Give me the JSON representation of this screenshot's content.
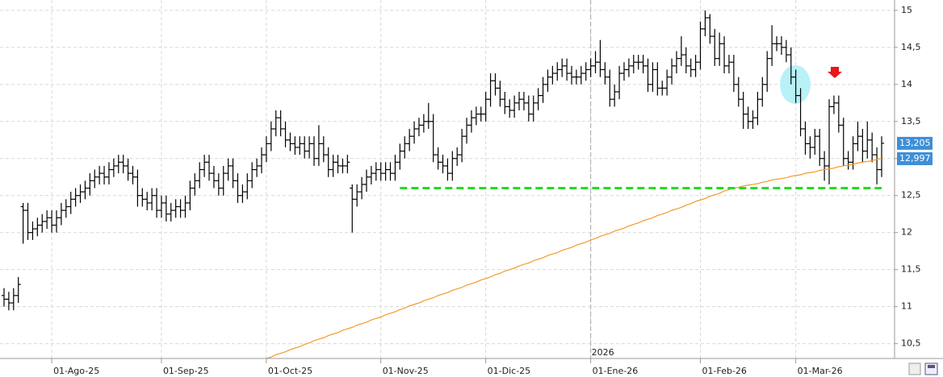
{
  "chart_data": {
    "type": "ohlc",
    "bar_color": "#000000",
    "categories": [
      null,
      null,
      null,
      null,
      null,
      null,
      null,
      null,
      null,
      null,
      "01-Ago-25",
      null,
      null,
      null,
      null,
      null,
      null,
      null,
      null,
      null,
      null,
      null,
      null,
      null,
      null,
      null,
      null,
      null,
      null,
      null,
      null,
      null,
      null,
      "01-Sep-25",
      null,
      null,
      null,
      null,
      null,
      null,
      null,
      null,
      null,
      null,
      null,
      null,
      null,
      null,
      null,
      null,
      null,
      null,
      null,
      null,
      null,
      "01-Oct-25",
      null,
      null,
      null,
      null,
      null,
      null,
      null,
      null,
      null,
      null,
      null,
      null,
      null,
      null,
      null,
      null,
      null,
      null,
      null,
      null,
      null,
      null,
      null,
      "01-Nov-25",
      null,
      null,
      null,
      null,
      null,
      null,
      null,
      null,
      null,
      null,
      null,
      null,
      null,
      null,
      null,
      null,
      null,
      null,
      null,
      null,
      null,
      "01-Dic-25",
      null,
      null,
      null,
      null,
      null,
      null,
      null,
      null,
      null,
      null,
      null,
      null,
      null,
      null,
      null,
      null,
      null,
      null,
      null,
      null,
      null,
      "01-Ene-26",
      null,
      null,
      null,
      null,
      null,
      null,
      null,
      null,
      null,
      null,
      null,
      null,
      null,
      null,
      null,
      null,
      null,
      null,
      null,
      null,
      null,
      null,
      "01-Feb-26",
      null,
      null,
      null,
      null,
      null,
      null,
      null,
      null,
      null,
      null,
      null,
      null,
      null,
      null,
      null,
      null,
      null,
      null,
      null,
      "01-Mar-26",
      null,
      null,
      null,
      null,
      null,
      null,
      null,
      null,
      null,
      null,
      null,
      null,
      null,
      null,
      null,
      null,
      null,
      null
    ],
    "open": [
      11.15,
      11.1,
      11.05,
      11.15,
      12.35,
      12.3,
      12.0,
      12.05,
      12.1,
      12.15,
      12.2,
      12.1,
      12.2,
      12.3,
      12.35,
      12.45,
      12.5,
      12.55,
      12.6,
      12.7,
      12.75,
      12.8,
      12.75,
      12.85,
      12.9,
      12.95,
      12.9,
      12.8,
      12.75,
      12.5,
      12.45,
      12.4,
      12.5,
      12.3,
      12.4,
      12.25,
      12.3,
      12.35,
      12.3,
      12.4,
      12.6,
      12.7,
      12.85,
      12.95,
      12.8,
      12.7,
      12.6,
      12.8,
      12.9,
      12.7,
      12.5,
      12.55,
      12.7,
      12.85,
      12.9,
      13.05,
      13.2,
      13.4,
      13.55,
      13.4,
      13.25,
      13.2,
      13.15,
      13.2,
      13.1,
      13.2,
      13.0,
      13.2,
      13.05,
      12.85,
      12.95,
      12.9,
      12.9,
      12.6,
      12.45,
      12.55,
      12.65,
      12.75,
      12.8,
      12.85,
      12.8,
      12.85,
      12.8,
      12.95,
      13.1,
      13.2,
      13.3,
      13.4,
      13.45,
      13.5,
      13.5,
      13.05,
      12.95,
      12.9,
      12.8,
      13.0,
      13.05,
      13.3,
      13.45,
      13.55,
      13.6,
      13.6,
      13.8,
      14.05,
      13.95,
      13.8,
      13.7,
      13.65,
      13.75,
      13.8,
      13.75,
      13.6,
      13.75,
      13.85,
      14.0,
      14.1,
      14.15,
      14.2,
      14.25,
      14.15,
      14.1,
      14.1,
      14.15,
      14.2,
      14.25,
      14.3,
      14.2,
      14.1,
      13.8,
      13.9,
      14.15,
      14.2,
      14.25,
      14.3,
      14.3,
      14.25,
      14.0,
      14.2,
      13.95,
      13.95,
      14.1,
      14.25,
      14.35,
      14.4,
      14.25,
      14.2,
      14.3,
      14.75,
      14.9,
      14.65,
      14.35,
      14.55,
      14.25,
      14.3,
      14.0,
      13.8,
      13.6,
      13.5,
      13.55,
      13.8,
      14.0,
      14.35,
      14.55,
      14.55,
      14.5,
      14.4,
      14.1,
      13.85,
      13.4,
      13.2,
      13.15,
      13.3,
      13.0,
      12.9,
      13.7,
      13.75,
      13.45,
      13.0,
      12.95,
      13.2,
      13.3,
      13.1,
      13.25,
      13.05,
      12.85
    ],
    "high": [
      11.25,
      11.2,
      11.25,
      11.4,
      12.4,
      12.4,
      12.15,
      12.2,
      12.25,
      12.3,
      12.3,
      12.3,
      12.4,
      12.45,
      12.55,
      12.6,
      12.65,
      12.7,
      12.8,
      12.85,
      12.9,
      12.9,
      12.95,
      13.0,
      13.05,
      13.05,
      13.0,
      12.9,
      12.85,
      12.6,
      12.55,
      12.6,
      12.6,
      12.5,
      12.5,
      12.4,
      12.45,
      12.45,
      12.5,
      12.7,
      12.8,
      12.95,
      13.05,
      13.05,
      12.9,
      12.8,
      12.9,
      13.0,
      13.0,
      12.8,
      12.65,
      12.8,
      12.95,
      13.0,
      13.15,
      13.3,
      13.5,
      13.65,
      13.65,
      13.5,
      13.35,
      13.3,
      13.3,
      13.3,
      13.3,
      13.3,
      13.45,
      13.3,
      13.15,
      13.05,
      13.05,
      13.0,
      13.05,
      12.65,
      12.65,
      12.75,
      12.85,
      12.9,
      12.95,
      12.95,
      12.95,
      12.95,
      13.05,
      13.2,
      13.3,
      13.4,
      13.5,
      13.55,
      13.6,
      13.75,
      13.6,
      13.15,
      13.05,
      13.0,
      13.1,
      13.15,
      13.4,
      13.55,
      13.65,
      13.7,
      13.7,
      13.9,
      14.15,
      14.15,
      14.05,
      13.9,
      13.8,
      13.85,
      13.9,
      13.9,
      13.85,
      13.85,
      13.95,
      14.1,
      14.2,
      14.25,
      14.3,
      14.35,
      14.35,
      14.25,
      14.2,
      14.25,
      14.3,
      14.35,
      14.45,
      14.6,
      14.3,
      14.2,
      14.0,
      14.25,
      14.3,
      14.35,
      14.4,
      14.4,
      14.4,
      14.35,
      14.3,
      14.3,
      14.05,
      14.2,
      14.35,
      14.45,
      14.65,
      14.5,
      14.35,
      14.4,
      14.85,
      15.0,
      14.95,
      14.75,
      14.7,
      14.65,
      14.4,
      14.4,
      14.1,
      13.9,
      13.7,
      13.65,
      13.9,
      14.1,
      14.45,
      14.8,
      14.65,
      14.65,
      14.6,
      14.5,
      14.2,
      13.95,
      13.5,
      13.3,
      13.4,
      13.4,
      13.1,
      13.8,
      13.85,
      13.85,
      13.55,
      13.1,
      13.3,
      13.5,
      13.4,
      13.5,
      13.35,
      13.15,
      13.3
    ],
    "low": [
      11.0,
      10.95,
      10.95,
      11.05,
      11.85,
      11.9,
      11.9,
      11.95,
      12.0,
      12.05,
      12.0,
      12.0,
      12.1,
      12.2,
      12.25,
      12.35,
      12.4,
      12.45,
      12.5,
      12.6,
      12.65,
      12.65,
      12.65,
      12.75,
      12.8,
      12.8,
      12.7,
      12.65,
      12.35,
      12.35,
      12.3,
      12.3,
      12.2,
      12.2,
      12.15,
      12.15,
      12.2,
      12.2,
      12.2,
      12.3,
      12.5,
      12.6,
      12.75,
      12.7,
      12.6,
      12.5,
      12.5,
      12.7,
      12.6,
      12.4,
      12.4,
      12.45,
      12.6,
      12.75,
      12.8,
      12.95,
      13.1,
      13.3,
      13.3,
      13.15,
      13.1,
      13.05,
      13.05,
      13.0,
      13.0,
      12.9,
      12.9,
      12.95,
      12.75,
      12.75,
      12.8,
      12.8,
      12.8,
      12.0,
      12.35,
      12.45,
      12.55,
      12.65,
      12.7,
      12.7,
      12.7,
      12.7,
      12.7,
      12.85,
      13.0,
      13.1,
      13.2,
      13.3,
      13.35,
      13.4,
      12.95,
      12.85,
      12.8,
      12.7,
      12.7,
      12.9,
      12.95,
      13.2,
      13.35,
      13.45,
      13.5,
      13.5,
      13.7,
      13.85,
      13.7,
      13.6,
      13.55,
      13.55,
      13.65,
      13.65,
      13.5,
      13.5,
      13.65,
      13.75,
      13.9,
      14.0,
      14.05,
      14.1,
      14.05,
      14.0,
      14.0,
      14.0,
      14.05,
      14.1,
      14.15,
      14.1,
      14.0,
      13.7,
      13.7,
      13.8,
      14.05,
      14.1,
      14.15,
      14.2,
      14.15,
      13.9,
      13.9,
      13.85,
      13.85,
      13.85,
      14.0,
      14.15,
      14.25,
      14.15,
      14.1,
      14.1,
      14.2,
      14.65,
      14.55,
      14.25,
      14.25,
      14.15,
      14.15,
      13.9,
      13.7,
      13.4,
      13.4,
      13.4,
      13.45,
      13.7,
      13.9,
      14.25,
      14.45,
      14.4,
      14.3,
      14.0,
      13.75,
      13.3,
      13.05,
      13.0,
      13.05,
      12.9,
      12.7,
      12.65,
      13.6,
      13.35,
      12.9,
      12.85,
      12.85,
      13.1,
      12.95,
      13.0,
      12.95,
      12.65,
      12.75
    ],
    "close": [
      11.1,
      11.05,
      11.15,
      11.3,
      12.3,
      12.0,
      12.05,
      12.1,
      12.15,
      12.2,
      12.1,
      12.2,
      12.3,
      12.35,
      12.45,
      12.5,
      12.55,
      12.6,
      12.7,
      12.75,
      12.8,
      12.75,
      12.85,
      12.9,
      12.95,
      12.9,
      12.8,
      12.75,
      12.5,
      12.45,
      12.4,
      12.5,
      12.3,
      12.4,
      12.25,
      12.3,
      12.35,
      12.3,
      12.4,
      12.6,
      12.7,
      12.85,
      12.95,
      12.8,
      12.7,
      12.6,
      12.8,
      12.9,
      12.7,
      12.5,
      12.55,
      12.7,
      12.85,
      12.9,
      13.05,
      13.2,
      13.4,
      13.55,
      13.4,
      13.25,
      13.2,
      13.15,
      13.2,
      13.1,
      13.2,
      13.0,
      13.2,
      13.05,
      12.85,
      12.95,
      12.9,
      12.9,
      12.95,
      12.45,
      12.55,
      12.65,
      12.75,
      12.8,
      12.85,
      12.8,
      12.85,
      12.8,
      12.95,
      13.1,
      13.2,
      13.3,
      13.4,
      13.45,
      13.5,
      13.5,
      13.05,
      12.95,
      12.9,
      12.8,
      13.0,
      13.05,
      13.3,
      13.45,
      13.55,
      13.6,
      13.6,
      13.8,
      14.05,
      13.95,
      13.8,
      13.7,
      13.65,
      13.75,
      13.8,
      13.75,
      13.6,
      13.75,
      13.85,
      14.0,
      14.1,
      14.15,
      14.2,
      14.25,
      14.15,
      14.1,
      14.1,
      14.15,
      14.2,
      14.25,
      14.3,
      14.2,
      14.1,
      13.8,
      13.9,
      14.15,
      14.2,
      14.25,
      14.3,
      14.3,
      14.25,
      14.0,
      14.2,
      13.95,
      13.95,
      14.1,
      14.25,
      14.35,
      14.4,
      14.25,
      14.2,
      14.3,
      14.75,
      14.9,
      14.65,
      14.35,
      14.55,
      14.25,
      14.3,
      14.0,
      13.8,
      13.6,
      13.5,
      13.55,
      13.8,
      14.0,
      14.35,
      14.55,
      14.55,
      14.5,
      14.4,
      14.1,
      13.85,
      13.4,
      13.2,
      13.15,
      13.3,
      13.0,
      12.9,
      13.7,
      13.75,
      13.45,
      13.0,
      12.95,
      13.2,
      13.3,
      13.1,
      13.25,
      13.05,
      12.85,
      13.205
    ],
    "ma": {
      "color": "#f39a2b",
      "values": [
        null,
        null,
        null,
        null,
        null,
        null,
        null,
        null,
        null,
        null,
        null,
        null,
        null,
        null,
        null,
        null,
        null,
        null,
        null,
        null,
        null,
        null,
        null,
        null,
        null,
        null,
        null,
        null,
        null,
        null,
        null,
        null,
        null,
        null,
        null,
        null,
        null,
        null,
        null,
        null,
        null,
        null,
        null,
        null,
        null,
        null,
        null,
        null,
        null,
        null,
        null,
        null,
        null,
        null,
        null,
        10.3,
        10.32,
        10.35,
        10.37,
        10.39,
        10.42,
        10.44,
        10.46,
        10.49,
        10.51,
        10.54,
        10.56,
        10.58,
        10.61,
        10.63,
        10.65,
        10.68,
        10.7,
        10.72,
        10.75,
        10.77,
        10.79,
        10.82,
        10.84,
        10.86,
        10.89,
        10.91,
        10.93,
        10.96,
        10.98,
        11.01,
        11.03,
        11.05,
        11.08,
        11.1,
        11.12,
        11.15,
        11.17,
        11.19,
        11.22,
        11.24,
        11.26,
        11.29,
        11.31,
        11.33,
        11.36,
        11.38,
        11.4,
        11.43,
        11.45,
        11.48,
        11.5,
        11.52,
        11.55,
        11.57,
        11.59,
        11.62,
        11.64,
        11.66,
        11.69,
        11.71,
        11.73,
        11.76,
        11.78,
        11.8,
        11.83,
        11.85,
        11.87,
        11.9,
        11.92,
        11.95,
        11.97,
        11.99,
        12.02,
        12.04,
        12.06,
        12.09,
        12.11,
        12.13,
        12.16,
        12.18,
        12.2,
        12.23,
        12.25,
        12.27,
        12.3,
        12.32,
        12.34,
        12.37,
        12.39,
        12.42,
        12.44,
        12.46,
        12.49,
        12.51,
        12.53,
        12.56,
        12.58,
        12.6,
        12.61,
        12.63,
        12.64,
        12.65,
        12.66,
        12.68,
        12.69,
        12.71,
        12.72,
        12.73,
        12.74,
        12.76,
        12.77,
        12.78,
        12.8,
        12.81,
        12.82,
        12.84,
        12.85,
        12.86,
        12.87,
        12.89,
        12.9,
        12.91,
        12.92,
        12.94,
        12.95,
        12.96,
        12.97,
        12.99,
        12.997
      ]
    },
    "support": {
      "value": 12.6,
      "start": 83,
      "color": "#22dd22"
    },
    "price_tags": [
      {
        "value": 13.205,
        "label": "13,205"
      },
      {
        "value": 12.997,
        "label": "12,997"
      }
    ],
    "year_marker": {
      "index": 123,
      "label": "2026"
    },
    "ylim": [
      10.3,
      15.14
    ],
    "yticks": [
      {
        "value": 10.5,
        "label": "10,5"
      },
      11,
      {
        "value": 11.5,
        "label": "11,5"
      },
      12,
      {
        "value": 12.5,
        "label": "12,5"
      },
      13,
      {
        "value": 13.5,
        "label": "13,5"
      },
      14,
      {
        "value": 14.5,
        "label": "14,5"
      },
      15
    ],
    "grid": true
  }
}
